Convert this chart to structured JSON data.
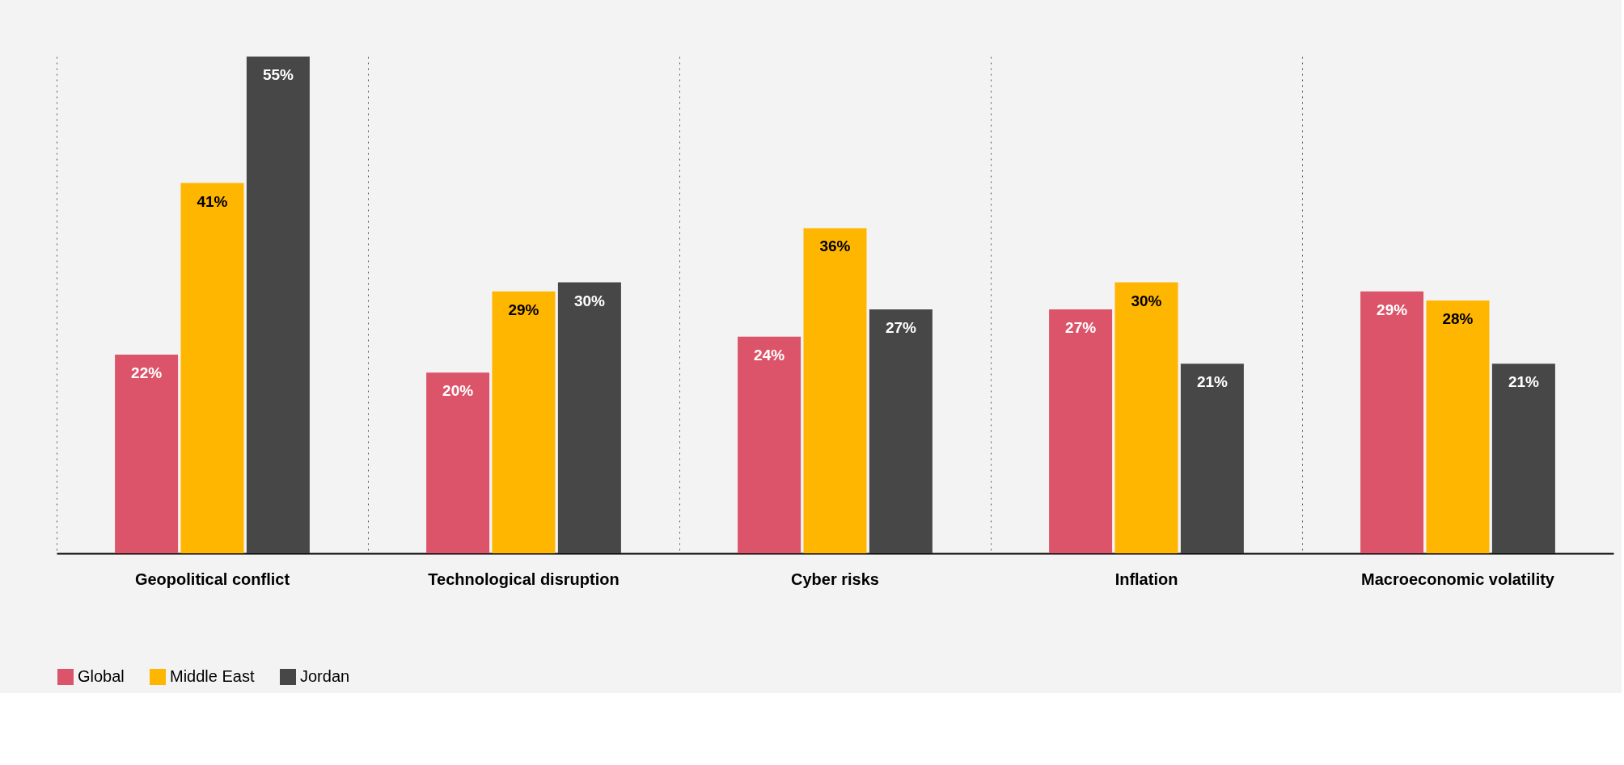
{
  "chart_data": {
    "type": "bar",
    "categories": [
      "Geopolitical conflict",
      "Technological disruption",
      "Cyber risks",
      "Inflation",
      "Macroeconomic volatility"
    ],
    "series": [
      {
        "name": "Global",
        "color": "#dc5469",
        "values": [
          22,
          20,
          24,
          27,
          29
        ],
        "value_labels": [
          "22%",
          "20%",
          "24%",
          "27%",
          "29%"
        ]
      },
      {
        "name": "Middle East",
        "color": "#ffb600",
        "values": [
          41,
          29,
          36,
          30,
          28
        ],
        "value_labels": [
          "41%",
          "29%",
          "36%",
          "30%",
          "28%"
        ]
      },
      {
        "name": "Jordan",
        "color": "#474747",
        "values": [
          55,
          30,
          27,
          21,
          21
        ],
        "value_labels": [
          "55%",
          "30%",
          "27%",
          "21%",
          "21%"
        ]
      }
    ],
    "grid": "x",
    "legend": "bottom"
  }
}
